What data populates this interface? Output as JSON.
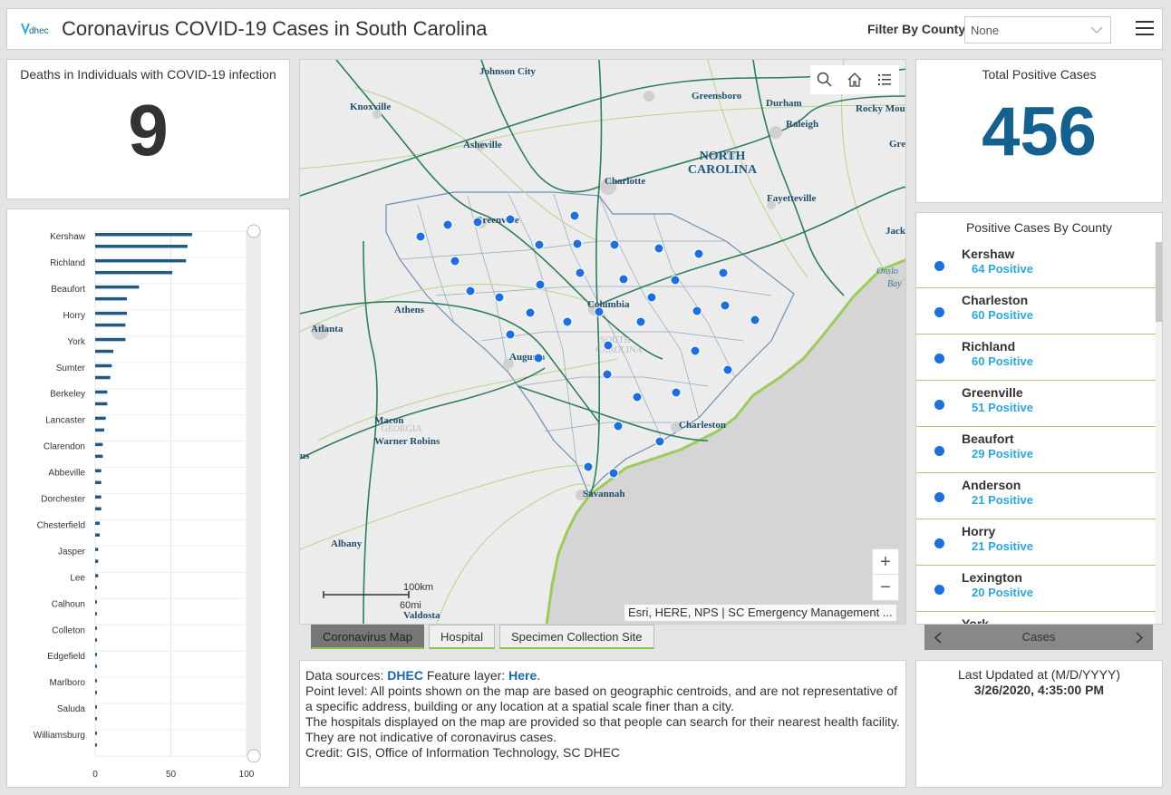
{
  "header": {
    "logo_text": "dhec",
    "title": "Coronavirus COVID-19 Cases in South Carolina",
    "filter_label": "Filter By County",
    "filter_value": "None"
  },
  "deaths": {
    "title": "Deaths in Individuals with COVID-19 infection",
    "value": "9"
  },
  "total": {
    "title": "Total Positive Cases",
    "value": "456"
  },
  "county_list": {
    "title": "Positive Cases By County",
    "items": [
      {
        "name": "Kershaw",
        "count": "64 Positive"
      },
      {
        "name": "Charleston",
        "count": "60 Positive"
      },
      {
        "name": "Richland",
        "count": "60 Positive"
      },
      {
        "name": "Greenville",
        "count": "51 Positive"
      },
      {
        "name": "Beaufort",
        "count": "29 Positive"
      },
      {
        "name": "Anderson",
        "count": "21 Positive"
      },
      {
        "name": "Horry",
        "count": "21 Positive"
      },
      {
        "name": "Lexington",
        "count": "20 Positive"
      },
      {
        "name": "York",
        "count": ""
      }
    ],
    "pager_label": "Cases"
  },
  "map": {
    "attribution": "Esri, HERE, NPS | SC Emergency Management ...",
    "scale_km": "100km",
    "scale_mi": "60mi",
    "state_labels": [
      "NORTH",
      "CAROLINA",
      "SOUTH",
      "CAROLINA",
      "GEORGIA"
    ],
    "city_labels": [
      "Johnson City",
      "Knoxville",
      "Greensboro",
      "Durham",
      "Raleigh",
      "Rocky Mou",
      "Gre",
      "Asheville",
      "Charlotte",
      "Fayetteville",
      "Jacks",
      "Onslo",
      "Bay",
      "Greenville",
      "Athens",
      "Columbia",
      "Atlanta",
      "Augusta",
      "Macon",
      "Warner Robins",
      "Charleston",
      "Savannah",
      "us",
      "Albany",
      "Valdosta"
    ],
    "colors": {
      "water": "#d6d6d6",
      "land": "#ececec",
      "highway": "#2e7d5b",
      "road": "#b7d38a",
      "coast": "#9ccb5c",
      "point": "#1d6fdc"
    }
  },
  "tabs": [
    {
      "label": "Coronavirus Map",
      "active": true
    },
    {
      "label": "Hospital",
      "active": false
    },
    {
      "label": "Specimen Collection Site",
      "active": false
    }
  ],
  "info": {
    "sources_prefix": "Data sources: ",
    "dhec_link": "DHEC",
    "feature_text": " Feature layer: ",
    "here_link": "Here",
    "period": ".",
    "point_level": "Point level: All points shown on the map are based on geographic centroids, and are not representative of a specific address, building or any location at a spatial scale finer than a city.",
    "hospitals": "The hospitals displayed on the map are provided so that people can search for their nearest health facility. They are not indicative of coronavirus cases.",
    "credit": "Credit: GIS, Office of Information Technology, SC DHEC"
  },
  "updated": {
    "label": "Last Updated at (M/D/YYYY)",
    "value": "3/26/2020, 4:35:00 PM"
  },
  "chart_data": {
    "type": "bar",
    "orientation": "horizontal",
    "categories": [
      "Kershaw",
      "Richland",
      "Beaufort",
      "Horry",
      "York",
      "Sumter",
      "Berkeley",
      "Lancaster",
      "Clarendon",
      "Abbeville",
      "Dorchester",
      "Chesterfield",
      "Jasper",
      "Lee",
      "Calhoun",
      "Colleton",
      "Edgefield",
      "Marlboro",
      "Saluda",
      "Williamsburg"
    ],
    "values": [
      64,
      60,
      29,
      21,
      20,
      11,
      8,
      7,
      5,
      4,
      4,
      3,
      2,
      2,
      1,
      1,
      1,
      1,
      1,
      1
    ],
    "secondary_values": [
      61,
      51,
      21,
      20,
      12,
      10,
      8,
      6,
      5,
      4,
      4,
      3,
      2,
      1,
      1,
      1,
      1,
      1,
      1,
      1
    ],
    "xlim": [
      0,
      100
    ],
    "x_ticks": [
      "0",
      "50",
      "100"
    ],
    "bar_color": "#1e5a84",
    "grid": true
  }
}
